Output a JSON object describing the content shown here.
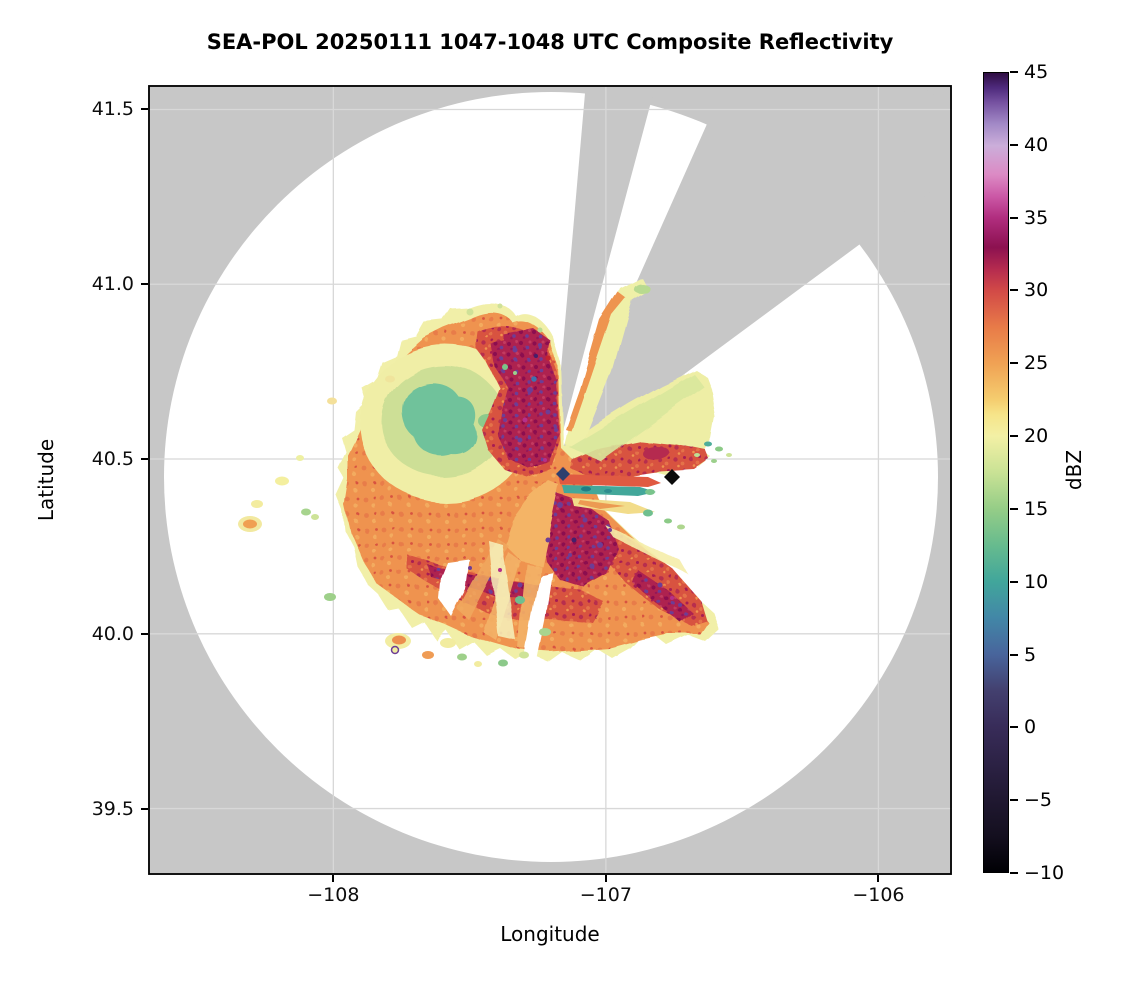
{
  "chart_data": {
    "type": "heatmap",
    "subtype": "radar-ppi-composite-reflectivity-map",
    "title": "SEA-POL 20250111 1047-1048 UTC Composite Reflectivity",
    "xlabel": "Longitude",
    "ylabel": "Latitude",
    "xlim": [
      -108.68,
      -105.73
    ],
    "ylim": [
      39.31,
      41.57
    ],
    "grid": true,
    "xticks": {
      "values": [
        -108,
        -107,
        -106
      ],
      "labels": [
        "−108",
        "−107",
        "−106"
      ]
    },
    "yticks": {
      "values": [
        39.5,
        40.0,
        40.5,
        41.0,
        41.5
      ],
      "labels": [
        "39.5",
        "40.0",
        "40.5",
        "41.0",
        "41.5"
      ]
    },
    "colorbar": {
      "label": "dBZ",
      "min": -10,
      "max": 45,
      "ticks": {
        "values": [
          45,
          40,
          35,
          30,
          25,
          20,
          15,
          10,
          5,
          0,
          -5,
          -10
        ],
        "labels": [
          "45",
          "40",
          "35",
          "30",
          "25",
          "20",
          "15",
          "10",
          "5",
          "0",
          "−5",
          "−10"
        ]
      },
      "gradient_stops": [
        {
          "value": -10,
          "color": "#000004"
        },
        {
          "value": -7.5,
          "color": "#140f1f"
        },
        {
          "value": -5,
          "color": "#201831"
        },
        {
          "value": -2.5,
          "color": "#2c2245"
        },
        {
          "value": 0,
          "color": "#382c59"
        },
        {
          "value": 2.5,
          "color": "#43406f"
        },
        {
          "value": 5,
          "color": "#48659c"
        },
        {
          "value": 7.5,
          "color": "#4287a7"
        },
        {
          "value": 10,
          "color": "#41a69b"
        },
        {
          "value": 12.5,
          "color": "#67bb8e"
        },
        {
          "value": 15,
          "color": "#95cd87"
        },
        {
          "value": 17.5,
          "color": "#c9e295"
        },
        {
          "value": 20,
          "color": "#f3f0a5"
        },
        {
          "value": 21.5,
          "color": "#f6e489"
        },
        {
          "value": 22.5,
          "color": "#f5cd6f"
        },
        {
          "value": 25,
          "color": "#f0a254"
        },
        {
          "value": 27.5,
          "color": "#e87b48"
        },
        {
          "value": 30,
          "color": "#d24a47"
        },
        {
          "value": 31.5,
          "color": "#b52b4f"
        },
        {
          "value": 33,
          "color": "#8c1150"
        },
        {
          "value": 35,
          "color": "#b02d7e"
        },
        {
          "value": 36.5,
          "color": "#cb58a6"
        },
        {
          "value": 38,
          "color": "#dc8ac4"
        },
        {
          "value": 40,
          "color": "#cbaeda"
        },
        {
          "value": 41.5,
          "color": "#a289c6"
        },
        {
          "value": 43,
          "color": "#7551a0"
        },
        {
          "value": 44,
          "color": "#4e2a7c"
        },
        {
          "value": 45,
          "color": "#2f0d42"
        }
      ]
    },
    "radar": {
      "name": "SEA-POL",
      "center_lon": -107.2,
      "center_lat": 40.47,
      "range_radius_deg_lon": 1.42,
      "no_data_color": "#c7c7c7",
      "blocked_sector_azimuths_deg": [
        [
          5,
          15
        ],
        [
          24,
          53.5
        ]
      ]
    },
    "echo_features": [
      {
        "desc": "main stratiform echo mass, mottled 20-45 dBZ cores (orange/red/crimson with purple speckle)",
        "lon_range": [
          -107.8,
          -106.95
        ],
        "lat_range": [
          40.05,
          40.78
        ],
        "dbz_range": [
          15,
          45
        ]
      },
      {
        "desc": "weak-echo pocket (solid green) embedded NW of radar",
        "center_lon": -107.6,
        "center_lat": 40.62,
        "dbz_range": [
          8,
          14
        ]
      },
      {
        "desc": "eastern echo lobe between the two blocked sectors",
        "lon_range": [
          -107.2,
          -106.55
        ],
        "lat_range": [
          40.42,
          40.66
        ],
        "dbz_range": [
          15,
          33
        ]
      },
      {
        "desc": "ground-clutter spokes east and south-southwest of radar (teal/green and tan radial streaks with white gaps)",
        "dbz_range": [
          0,
          25
        ]
      },
      {
        "desc": "isolated light-echo specks west and south of the main mass",
        "dbz_range": [
          15,
          25
        ]
      }
    ],
    "markers": [
      {
        "type": "diamond",
        "color": "#0a0a0a",
        "lon": -106.76,
        "lat": 40.45,
        "desc": "site marker east of radar"
      },
      {
        "type": "diamond",
        "color": "#2e3f6e",
        "lon": -107.16,
        "lat": 40.46,
        "desc": "dark navy pixel cluster at radar"
      }
    ]
  }
}
